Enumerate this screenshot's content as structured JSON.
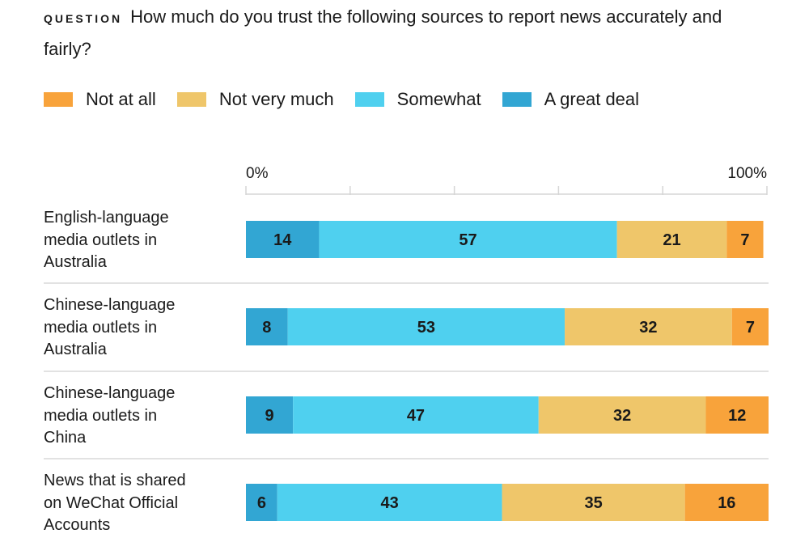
{
  "question_label": "QUESTION",
  "question_text": "How much do you trust the following sources to report news accurately and fairly?",
  "chart_data": {
    "type": "bar",
    "orientation": "horizontal",
    "stacked": true,
    "xlim": [
      0,
      100
    ],
    "tick_labels": [
      "0%",
      "100%"
    ],
    "categories": [
      "English-language media outlets in Australia",
      "Chinese-language media outlets in Australia",
      "Chinese-language media outlets in China",
      "News that is shared on WeChat Official Accounts"
    ],
    "category_lines": [
      [
        "English-language",
        "media outlets in",
        "Australia"
      ],
      [
        "Chinese-language",
        "media outlets in",
        "Australia"
      ],
      [
        "Chinese-language",
        "media outlets in",
        "China"
      ],
      [
        "News that is shared",
        "on WeChat Official",
        "Accounts"
      ]
    ],
    "series": [
      {
        "name": "A great deal",
        "color": "#32a6d3",
        "values": [
          14,
          8,
          9,
          6
        ]
      },
      {
        "name": "Somewhat",
        "color": "#4fd0ef",
        "values": [
          57,
          53,
          47,
          43
        ]
      },
      {
        "name": "Not very much",
        "color": "#efc66a",
        "values": [
          21,
          32,
          32,
          35
        ]
      },
      {
        "name": "Not at all",
        "color": "#f8a33b",
        "values": [
          7,
          7,
          12,
          16
        ]
      }
    ],
    "legend_order": [
      "Not at all",
      "Not very much",
      "Somewhat",
      "A great deal"
    ],
    "legend_placement": "top",
    "grid": false
  }
}
